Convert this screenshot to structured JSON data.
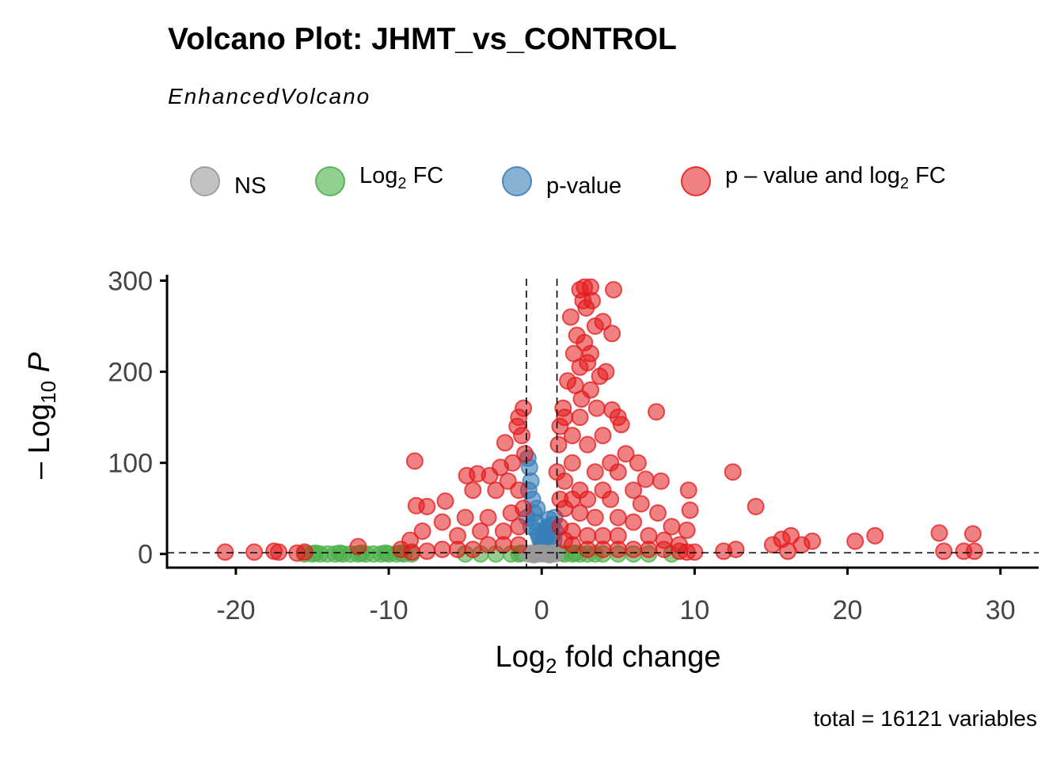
{
  "chart_data": {
    "type": "scatter",
    "title": "Volcano Plot: JHMT_vs_CONTROL",
    "subtitle": "EnhancedVolcano",
    "xlabel": "Log2 fold change",
    "ylabel": "-Log10 P",
    "xlim": [
      -24.5,
      32.5
    ],
    "ylim": [
      -15,
      310
    ],
    "xticks": [
      -20,
      -10,
      0,
      10,
      20,
      30
    ],
    "xtick_labels": [
      "-20",
      "-10",
      "0",
      "10",
      "20",
      "30"
    ],
    "yticks": [
      0,
      100,
      200,
      300
    ],
    "ytick_labels": [
      "0",
      "100",
      "200",
      "300"
    ],
    "cutoffs": {
      "log2fc": [
        -1,
        1
      ],
      "neg_log10_p": 1.3
    },
    "grid": false,
    "legend_position": "top",
    "caption": "total = 16121 variables",
    "series": [
      {
        "name": "NS",
        "label": "NS",
        "color": "#999999",
        "points": [
          [
            -0.9,
            0
          ],
          [
            -0.6,
            0
          ],
          [
            -0.3,
            0
          ],
          [
            0,
            0
          ],
          [
            0.3,
            0
          ],
          [
            0.6,
            0
          ],
          [
            0.9,
            0
          ],
          [
            -0.7,
            1
          ],
          [
            -0.2,
            1
          ],
          [
            0.2,
            1
          ],
          [
            0.7,
            1
          ],
          [
            -0.5,
            -1
          ],
          [
            0.5,
            -1
          ],
          [
            0,
            1
          ]
        ]
      },
      {
        "name": "Log2 FC",
        "label_main": "Log",
        "label_sub": "2",
        "label_rest": " FC",
        "color": "#4daf4a",
        "points": [
          [
            -15.5,
            0
          ],
          [
            -15,
            0
          ],
          [
            -14.5,
            0
          ],
          [
            -14,
            0
          ],
          [
            -13.5,
            0
          ],
          [
            -13,
            0
          ],
          [
            -12.5,
            0
          ],
          [
            -12,
            0
          ],
          [
            -11.5,
            0
          ],
          [
            -11,
            0
          ],
          [
            -10.5,
            0
          ],
          [
            -10,
            0
          ],
          [
            -9.5,
            0
          ],
          [
            -9,
            0
          ],
          [
            -8.5,
            0
          ],
          [
            -14.8,
            1
          ],
          [
            -13.2,
            1
          ],
          [
            -11.8,
            1
          ],
          [
            -10.2,
            1
          ],
          [
            -9.2,
            1
          ],
          [
            -5,
            0
          ],
          [
            -4,
            0
          ],
          [
            -3,
            0
          ],
          [
            -2,
            0
          ],
          [
            -1.5,
            0
          ],
          [
            1.5,
            0
          ],
          [
            2,
            0
          ],
          [
            2.5,
            0
          ],
          [
            3,
            0
          ],
          [
            4,
            0
          ],
          [
            5,
            0
          ],
          [
            6,
            0
          ],
          [
            7,
            0
          ],
          [
            8.5,
            0
          ],
          [
            -1.3,
            1
          ],
          [
            1.3,
            1
          ],
          [
            2.2,
            1
          ],
          [
            3.5,
            0
          ]
        ]
      },
      {
        "name": "p-value",
        "label": "p-value",
        "color": "#377eb8",
        "points": [
          [
            -0.9,
            105
          ],
          [
            -0.8,
            95
          ],
          [
            -0.7,
            80
          ],
          [
            -0.6,
            60
          ],
          [
            -0.5,
            45
          ],
          [
            -0.4,
            35
          ],
          [
            -0.3,
            25
          ],
          [
            -0.2,
            20
          ],
          [
            -0.1,
            15
          ],
          [
            0,
            10
          ],
          [
            0.1,
            12
          ],
          [
            0.2,
            18
          ],
          [
            0.3,
            22
          ],
          [
            0.4,
            30
          ],
          [
            0.5,
            38
          ],
          [
            0.6,
            28
          ],
          [
            0.7,
            20
          ],
          [
            0.8,
            15
          ],
          [
            0.9,
            25
          ],
          [
            -0.85,
            70
          ],
          [
            -0.95,
            40
          ],
          [
            0.85,
            40
          ],
          [
            -0.7,
            30
          ],
          [
            0.7,
            32
          ],
          [
            -0.3,
            50
          ],
          [
            0.3,
            12
          ]
        ]
      },
      {
        "name": "p - value and log2 FC",
        "label_main": "p – value and log",
        "label_sub": "2",
        "label_rest": " FC",
        "color": "#e31a1c",
        "points": [
          [
            2.5,
            290
          ],
          [
            2.8,
            293
          ],
          [
            3.2,
            293
          ],
          [
            4.7,
            290
          ],
          [
            2.7,
            278
          ],
          [
            3.3,
            278
          ],
          [
            2.9,
            270
          ],
          [
            1.9,
            260
          ],
          [
            4,
            255
          ],
          [
            3.5,
            250
          ],
          [
            4.6,
            242
          ],
          [
            2.3,
            240
          ],
          [
            2.8,
            232
          ],
          [
            3.2,
            220
          ],
          [
            2.1,
            220
          ],
          [
            3,
            210
          ],
          [
            2.5,
            205
          ],
          [
            4.2,
            200
          ],
          [
            1.7,
            190
          ],
          [
            3.8,
            195
          ],
          [
            2.2,
            185
          ],
          [
            3.2,
            180
          ],
          [
            2.6,
            170
          ],
          [
            1.4,
            160
          ],
          [
            1.5,
            150
          ],
          [
            5,
            150
          ],
          [
            2.5,
            150
          ],
          [
            3.6,
            160
          ],
          [
            7.5,
            156
          ],
          [
            5.2,
            142
          ],
          [
            4.6,
            158
          ],
          [
            1.2,
            140
          ],
          [
            2,
            130
          ],
          [
            4,
            130
          ],
          [
            1.1,
            120
          ],
          [
            3,
            120
          ],
          [
            5.5,
            110
          ],
          [
            6.3,
            100
          ],
          [
            2,
            100
          ],
          [
            4.5,
            100
          ],
          [
            1,
            90
          ],
          [
            3.5,
            90
          ],
          [
            5,
            90
          ],
          [
            6.8,
            82
          ],
          [
            7.8,
            80
          ],
          [
            1.5,
            80
          ],
          [
            2.5,
            70
          ],
          [
            4,
            70
          ],
          [
            6,
            70
          ],
          [
            1.2,
            60
          ],
          [
            2,
            60
          ],
          [
            3,
            60
          ],
          [
            4.5,
            60
          ],
          [
            6.5,
            55
          ],
          [
            7.6,
            45
          ],
          [
            1.5,
            50
          ],
          [
            2.5,
            45
          ],
          [
            3.5,
            40
          ],
          [
            5,
            40
          ],
          [
            6,
            35
          ],
          [
            8.5,
            30
          ],
          [
            9.5,
            26
          ],
          [
            1.2,
            30
          ],
          [
            2,
            25
          ],
          [
            3,
            20
          ],
          [
            4,
            20
          ],
          [
            5,
            20
          ],
          [
            7,
            20
          ],
          [
            8,
            15
          ],
          [
            9,
            10
          ],
          [
            2,
            10
          ],
          [
            3,
            5
          ],
          [
            4,
            5
          ],
          [
            5,
            5
          ],
          [
            6,
            5
          ],
          [
            7,
            5
          ],
          [
            8,
            5
          ],
          [
            9,
            3
          ],
          [
            9.5,
            2
          ],
          [
            1.5,
            15
          ],
          [
            -1.2,
            160
          ],
          [
            -1.5,
            150
          ],
          [
            -1.6,
            140
          ],
          [
            -1.3,
            130
          ],
          [
            -2.4,
            122
          ],
          [
            -1.1,
            110
          ],
          [
            -1.9,
            100
          ],
          [
            -2.7,
            95
          ],
          [
            -3.4,
            86
          ],
          [
            -4.2,
            88
          ],
          [
            -4.9,
            86
          ],
          [
            -2.2,
            80
          ],
          [
            -1.5,
            70
          ],
          [
            -3,
            70
          ],
          [
            -4.5,
            70
          ],
          [
            -6.3,
            58
          ],
          [
            -7.5,
            52
          ],
          [
            -1.2,
            50
          ],
          [
            -2,
            45
          ],
          [
            -3.5,
            40
          ],
          [
            -5,
            40
          ],
          [
            -6.5,
            35
          ],
          [
            -1.5,
            30
          ],
          [
            -2.5,
            25
          ],
          [
            -4,
            25
          ],
          [
            -5.5,
            20
          ],
          [
            -7.8,
            25
          ],
          [
            -8.6,
            15
          ],
          [
            -1.5,
            10
          ],
          [
            -2.5,
            10
          ],
          [
            -3.5,
            10
          ],
          [
            -4.5,
            5
          ],
          [
            -5.5,
            5
          ],
          [
            -6.5,
            5
          ],
          [
            -7.5,
            3
          ],
          [
            -8.5,
            2
          ],
          [
            -9.2,
            5
          ],
          [
            -8.3,
            102
          ],
          [
            -8.2,
            53
          ],
          [
            -12,
            8
          ],
          [
            -15.5,
            2
          ],
          [
            -17.2,
            2
          ],
          [
            -17.5,
            3
          ],
          [
            -18.8,
            2
          ],
          [
            -20.7,
            2
          ],
          [
            -16,
            1
          ],
          [
            10,
            2
          ],
          [
            9.7,
            48
          ],
          [
            9.6,
            70
          ],
          [
            11.9,
            3
          ],
          [
            12.7,
            5
          ],
          [
            12.5,
            90
          ],
          [
            14,
            52
          ],
          [
            15.1,
            10
          ],
          [
            15.7,
            16
          ],
          [
            16.3,
            20
          ],
          [
            16.1,
            3
          ],
          [
            17,
            10
          ],
          [
            17.7,
            14
          ],
          [
            20.5,
            14
          ],
          [
            21.8,
            20
          ],
          [
            26,
            23
          ],
          [
            26.3,
            3
          ],
          [
            27.6,
            3
          ],
          [
            28.2,
            22
          ],
          [
            28.3,
            3
          ]
        ]
      }
    ]
  }
}
